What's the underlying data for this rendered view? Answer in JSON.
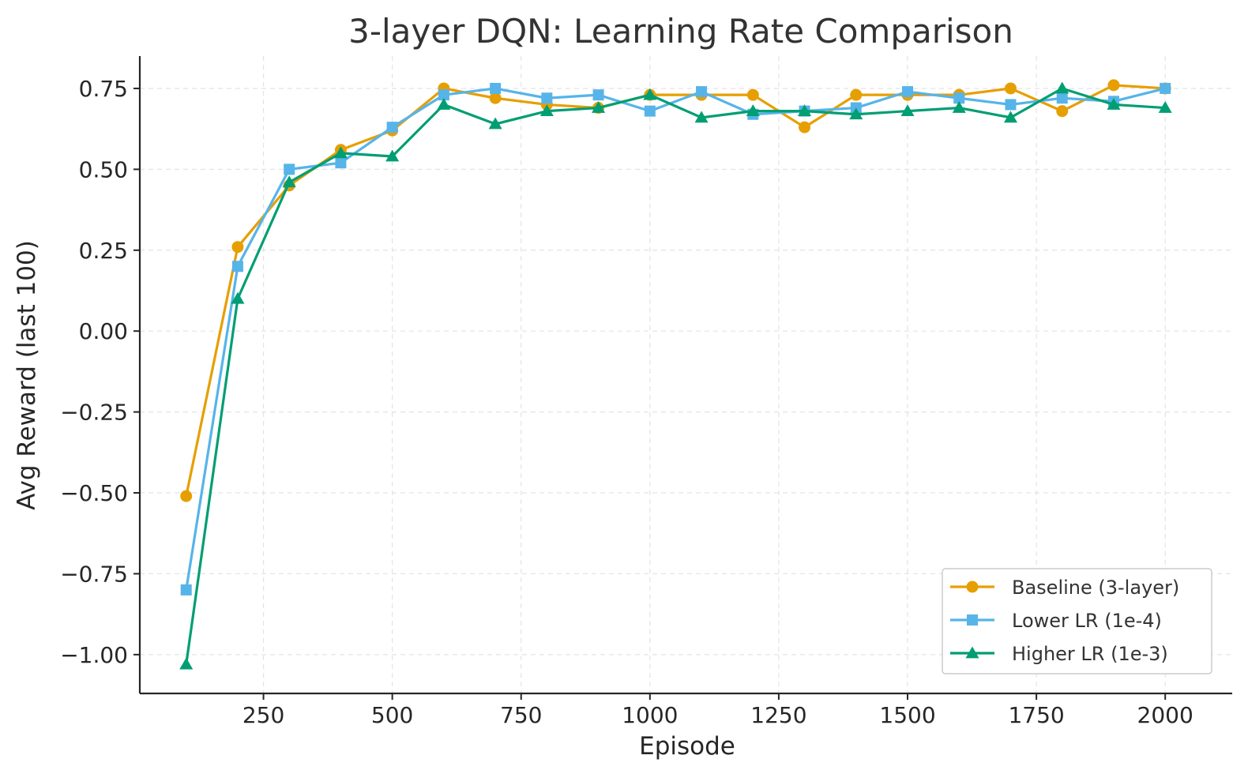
{
  "chart_data": {
    "type": "line",
    "title": "3-layer DQN: Learning Rate Comparison",
    "xlabel": "Episode",
    "ylabel": "Avg Reward (last 100)",
    "xlim": [
      10,
      2130
    ],
    "ylim": [
      -1.12,
      0.85
    ],
    "xticks": [
      250,
      500,
      750,
      1000,
      1250,
      1500,
      1750,
      2000
    ],
    "xtick_labels": [
      "250",
      "500",
      "750",
      "1000",
      "1250",
      "1500",
      "1750",
      "2000"
    ],
    "yticks": [
      -1.0,
      -0.75,
      -0.5,
      -0.25,
      0.0,
      0.25,
      0.5,
      0.75
    ],
    "ytick_labels": [
      "−1.00",
      "−0.75",
      "−0.50",
      "−0.25",
      "0.00",
      "0.25",
      "0.50",
      "0.75"
    ],
    "grid": true,
    "legend_position": "lower-right",
    "x": [
      100,
      200,
      300,
      400,
      500,
      600,
      700,
      800,
      900,
      1000,
      1100,
      1200,
      1300,
      1400,
      1500,
      1600,
      1700,
      1800,
      1900,
      2000
    ],
    "series": [
      {
        "name": "Baseline (3-layer)",
        "color": "#E69F00",
        "marker": "circle",
        "values": [
          -0.51,
          0.26,
          0.45,
          0.56,
          0.62,
          0.75,
          0.72,
          0.7,
          0.69,
          0.73,
          0.73,
          0.73,
          0.63,
          0.73,
          0.73,
          0.73,
          0.75,
          0.68,
          0.76,
          0.75
        ]
      },
      {
        "name": "Lower LR (1e-4)",
        "color": "#56B4E9",
        "marker": "square",
        "values": [
          -0.8,
          0.2,
          0.5,
          0.52,
          0.63,
          0.73,
          0.75,
          0.72,
          0.73,
          0.68,
          0.74,
          0.67,
          0.68,
          0.69,
          0.74,
          0.72,
          0.7,
          0.72,
          0.71,
          0.75
        ]
      },
      {
        "name": "Higher LR (1e-3)",
        "color": "#009E73",
        "marker": "triangle",
        "values": [
          -1.03,
          0.1,
          0.46,
          0.55,
          0.54,
          0.7,
          0.64,
          0.68,
          0.69,
          0.73,
          0.66,
          0.68,
          0.68,
          0.67,
          0.68,
          0.69,
          0.66,
          0.75,
          0.7,
          0.69
        ]
      }
    ]
  }
}
